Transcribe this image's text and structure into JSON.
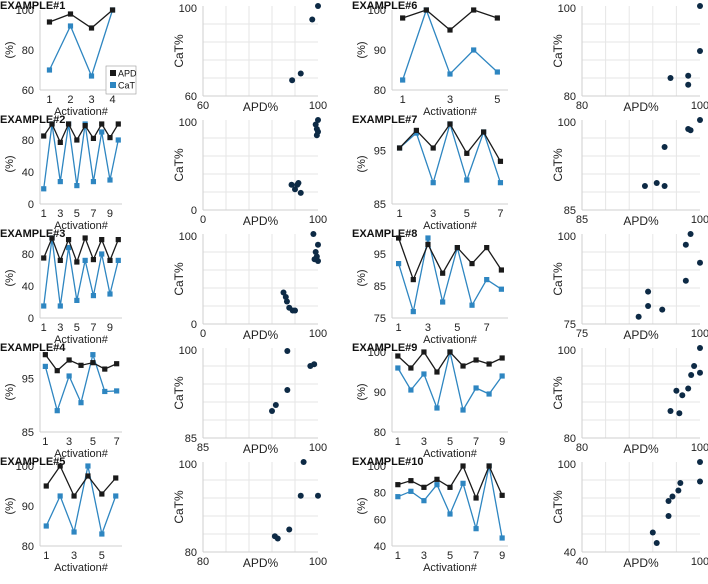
{
  "colors": {
    "apd": "#1a1a1a",
    "cat": "#2e86c1",
    "scatter_point": "#0d2a45",
    "grid": "#e6e6e6",
    "axis": "#cfcfcf"
  },
  "legend": {
    "placement": "top-right",
    "entries": [
      "APD",
      "CaT"
    ]
  },
  "chart_data": [
    {
      "type": "line",
      "title": "EXAMPLE#1",
      "ylabel": "(%)",
      "xlabel": "Activation#",
      "x_ticks": [
        "1",
        "2",
        "3",
        "4"
      ],
      "ylim": [
        60,
        100
      ],
      "y_ticks": [
        "60",
        "80",
        "100"
      ],
      "x": [
        1,
        2,
        3,
        4
      ],
      "series": [
        {
          "name": "APD",
          "values": [
            94,
            98,
            91,
            100
          ]
        },
        {
          "name": "CaT",
          "values": [
            70,
            92,
            67,
            100
          ]
        }
      ]
    },
    {
      "type": "scatter",
      "xlabel": "APD%",
      "ylabel": "CaT%",
      "xlim": [
        60,
        100
      ],
      "ylim": [
        60,
        100
      ],
      "x_tick_labels": [
        "60",
        "100"
      ],
      "y_tick_labels": [
        "60",
        "100"
      ],
      "points": [
        [
          91,
          67
        ],
        [
          94,
          70
        ],
        [
          98,
          94
        ],
        [
          100,
          100
        ]
      ]
    },
    {
      "type": "line",
      "title": "EXAMPLE#2",
      "ylabel": "(%)",
      "xlabel": "Activation#",
      "x_ticks": [
        "1",
        "3",
        "5",
        "7",
        "9"
      ],
      "ylim": [
        0,
        100
      ],
      "y_ticks": [
        "0",
        "40",
        "80"
      ],
      "x": [
        1,
        2,
        3,
        4,
        5,
        6,
        7,
        8,
        9,
        10
      ],
      "series": [
        {
          "name": "APD",
          "values": [
            85,
            100,
            77,
            100,
            80,
            98,
            82,
            100,
            83,
            100
          ]
        },
        {
          "name": "CaT",
          "values": [
            19,
            100,
            28,
            100,
            23,
            100,
            28,
            90,
            30,
            80
          ]
        }
      ]
    },
    {
      "type": "scatter",
      "xlabel": "APD%",
      "ylabel": "CaT%",
      "xlim": [
        0,
        100
      ],
      "ylim": [
        0,
        100
      ],
      "x_tick_labels": [
        "0",
        "100"
      ],
      "y_tick_labels": [
        "0",
        "100"
      ],
      "points": [
        [
          77,
          28
        ],
        [
          80,
          23
        ],
        [
          82,
          28
        ],
        [
          83,
          30
        ],
        [
          85,
          19
        ],
        [
          100,
          100
        ],
        [
          98,
          95
        ],
        [
          99,
          90
        ],
        [
          100,
          87
        ],
        [
          99,
          83
        ]
      ]
    },
    {
      "type": "line",
      "title": "EXAMPLE#3",
      "ylabel": "(%)",
      "xlabel": "Activation#",
      "x_ticks": [
        "1",
        "3",
        "5",
        "7",
        "9"
      ],
      "ylim": [
        0,
        100
      ],
      "y_ticks": [
        "0",
        "40",
        "80"
      ],
      "x": [
        1,
        2,
        3,
        4,
        5,
        6,
        7,
        8,
        9,
        10
      ],
      "series": [
        {
          "name": "APD",
          "values": [
            75,
            100,
            72,
            98,
            70,
            100,
            73,
            98,
            72,
            98
          ]
        },
        {
          "name": "CaT",
          "values": [
            15,
            100,
            15,
            88,
            22,
            72,
            28,
            80,
            30,
            72
          ]
        }
      ]
    },
    {
      "type": "scatter",
      "xlabel": "APD%",
      "ylabel": "CaT%",
      "xlim": [
        0,
        100
      ],
      "ylim": [
        0,
        100
      ],
      "x_tick_labels": [
        "0",
        "100"
      ],
      "y_tick_labels": [
        "0",
        "100"
      ],
      "points": [
        [
          70,
          35
        ],
        [
          72,
          30
        ],
        [
          73,
          25
        ],
        [
          75,
          18
        ],
        [
          78,
          15
        ],
        [
          80,
          15
        ],
        [
          96,
          100
        ],
        [
          100,
          88
        ],
        [
          98,
          80
        ],
        [
          99,
          75
        ],
        [
          97,
          72
        ],
        [
          100,
          70
        ]
      ]
    },
    {
      "type": "line",
      "title": "EXAMPLE#4",
      "ylabel": "(%)",
      "xlabel": "Activation#",
      "x_ticks": [
        "1",
        "3",
        "5",
        "7"
      ],
      "ylim": [
        85,
        100
      ],
      "y_ticks": [
        "85",
        "95"
      ],
      "x": [
        1,
        2,
        3,
        4,
        5,
        6,
        7
      ],
      "series": [
        {
          "name": "APD",
          "values": [
            99.5,
            96.5,
            98.5,
            97.5,
            98,
            96.8,
            97.8
          ]
        },
        {
          "name": "CaT",
          "values": [
            97.3,
            89,
            95.5,
            90.5,
            99.5,
            92.6,
            92.7
          ]
        }
      ]
    },
    {
      "type": "scatter",
      "xlabel": "APD%",
      "ylabel": "CaT%",
      "xlim": [
        85,
        100
      ],
      "ylim": [
        85,
        100
      ],
      "x_tick_labels": [
        "85",
        "100"
      ],
      "y_tick_labels": [
        "85",
        "100"
      ],
      "points": [
        [
          94,
          89.5
        ],
        [
          94.5,
          90.5
        ],
        [
          96,
          93
        ],
        [
          96,
          99.5
        ],
        [
          99,
          97
        ],
        [
          99.5,
          97.3
        ]
      ]
    },
    {
      "type": "line",
      "title": "EXAMPLE#5",
      "ylabel": "(%)",
      "xlabel": "Activation#",
      "x_ticks": [
        "1",
        "3",
        "5"
      ],
      "ylim": [
        80,
        100
      ],
      "y_ticks": [
        "80",
        "90",
        "100"
      ],
      "x": [
        1,
        2,
        3,
        4,
        5,
        6
      ],
      "series": [
        {
          "name": "APD",
          "values": [
            95,
            100,
            92.5,
            97.5,
            93,
            97
          ]
        },
        {
          "name": "CaT",
          "values": [
            85,
            92.5,
            83.5,
            100,
            83,
            92.5
          ]
        }
      ]
    },
    {
      "type": "scatter",
      "xlabel": "APD%",
      "ylabel": "CaT%",
      "xlim": [
        80,
        100
      ],
      "ylim": [
        80,
        100
      ],
      "x_tick_labels": [
        "80",
        "100"
      ],
      "y_tick_labels": [
        "80",
        "100"
      ],
      "points": [
        [
          92.5,
          83.5
        ],
        [
          93,
          83
        ],
        [
          95,
          85
        ],
        [
          97,
          92.5
        ],
        [
          97.5,
          100
        ],
        [
          100,
          92.5
        ]
      ]
    },
    {
      "type": "line",
      "title": "EXAMPLE#6",
      "ylabel": "(%)",
      "xlabel": "Activation#",
      "x_ticks": [
        "1",
        "3",
        "5"
      ],
      "ylim": [
        80,
        100
      ],
      "y_ticks": [
        "80",
        "90",
        "100"
      ],
      "x": [
        1,
        2,
        3,
        4,
        5
      ],
      "series": [
        {
          "name": "APD",
          "values": [
            98,
            100,
            95,
            100,
            98
          ]
        },
        {
          "name": "CaT",
          "values": [
            82.5,
            100,
            84,
            90,
            84.5
          ]
        }
      ]
    },
    {
      "type": "scatter",
      "xlabel": "APD%",
      "ylabel": "CaT%",
      "xlim": [
        80,
        100
      ],
      "ylim": [
        80,
        100
      ],
      "x_tick_labels": [
        "80",
        "100"
      ],
      "y_tick_labels": [
        "80",
        "100"
      ],
      "points": [
        [
          95,
          84
        ],
        [
          98,
          84.5
        ],
        [
          98,
          82.5
        ],
        [
          100,
          90
        ],
        [
          100,
          100
        ]
      ]
    },
    {
      "type": "line",
      "title": "EXAMPLE#7",
      "ylabel": "(%)",
      "xlabel": "Activation#",
      "x_ticks": [
        "1",
        "3",
        "5",
        "7"
      ],
      "ylim": [
        85,
        100
      ],
      "y_ticks": [
        "85",
        "95"
      ],
      "x": [
        1,
        2,
        3,
        4,
        5,
        6,
        7
      ],
      "series": [
        {
          "name": "APD",
          "values": [
            95.5,
            98.8,
            95.5,
            100,
            94.5,
            98.5,
            93
          ]
        },
        {
          "name": "CaT",
          "values": [
            95.5,
            98.3,
            89,
            100,
            89.5,
            98.5,
            89
          ]
        }
      ]
    },
    {
      "type": "scatter",
      "xlabel": "APD%",
      "ylabel": "CaT%",
      "xlim": [
        85,
        100
      ],
      "ylim": [
        85,
        100
      ],
      "x_tick_labels": [
        "85",
        "100"
      ],
      "y_tick_labels": [
        "85",
        "100"
      ],
      "points": [
        [
          93,
          89
        ],
        [
          94.5,
          89.5
        ],
        [
          95.5,
          89
        ],
        [
          95.5,
          95.5
        ],
        [
          98.5,
          98.5
        ],
        [
          98.8,
          98.3
        ],
        [
          100,
          100
        ]
      ]
    },
    {
      "type": "line",
      "title": "EXAMPLE#8",
      "ylabel": "(%)",
      "xlabel": "Activation#",
      "x_ticks": [
        "1",
        "3",
        "5",
        "7"
      ],
      "ylim": [
        75,
        100
      ],
      "y_ticks": [
        "75",
        "85",
        "95"
      ],
      "x": [
        1,
        2,
        3,
        4,
        5,
        6,
        7,
        8
      ],
      "series": [
        {
          "name": "APD",
          "values": [
            100,
            87,
            98,
            89,
            97,
            92,
            97,
            90
          ]
        },
        {
          "name": "CaT",
          "values": [
            92,
            77,
            100,
            80,
            97,
            79,
            87,
            84
          ]
        }
      ]
    },
    {
      "type": "scatter",
      "xlabel": "APD%",
      "ylabel": "CaT%",
      "xlim": [
        75,
        100
      ],
      "ylim": [
        75,
        100
      ],
      "x_tick_labels": [
        "75",
        "100"
      ],
      "y_tick_labels": [
        "75",
        "100"
      ],
      "points": [
        [
          87,
          77
        ],
        [
          89,
          80
        ],
        [
          89,
          84
        ],
        [
          92,
          79
        ],
        [
          97,
          87
        ],
        [
          97,
          97
        ],
        [
          98,
          100
        ],
        [
          100,
          92
        ]
      ]
    },
    {
      "type": "line",
      "title": "EXAMPLE#9",
      "ylabel": "(%)",
      "xlabel": "Activation#",
      "x_ticks": [
        "1",
        "3",
        "5",
        "7",
        "9"
      ],
      "ylim": [
        80,
        100
      ],
      "y_ticks": [
        "80",
        "90",
        "100"
      ],
      "x": [
        1,
        2,
        3,
        4,
        5,
        6,
        7,
        8,
        9
      ],
      "series": [
        {
          "name": "APD",
          "values": [
            99,
            96,
            100,
            95,
            100,
            96.5,
            98,
            97,
            98.5
          ]
        },
        {
          "name": "CaT",
          "values": [
            96,
            90.5,
            94.5,
            86,
            100,
            85.5,
            91,
            89.5,
            94
          ]
        }
      ]
    },
    {
      "type": "scatter",
      "xlabel": "APD%",
      "ylabel": "CaT%",
      "xlim": [
        80,
        100
      ],
      "ylim": [
        80,
        100
      ],
      "x_tick_labels": [
        "80",
        "100"
      ],
      "y_tick_labels": [
        "80",
        "100"
      ],
      "points": [
        [
          95,
          86
        ],
        [
          96,
          90.5
        ],
        [
          96.5,
          85.5
        ],
        [
          97,
          89.5
        ],
        [
          98,
          91
        ],
        [
          98.5,
          94
        ],
        [
          99,
          96
        ],
        [
          100,
          100
        ],
        [
          100,
          94.5
        ]
      ]
    },
    {
      "type": "line",
      "title": "EXAMPLE#10",
      "ylabel": "(%)",
      "xlabel": "Activation#",
      "x_ticks": [
        "1",
        "3",
        "5",
        "7",
        "9"
      ],
      "ylim": [
        40,
        100
      ],
      "y_ticks": [
        "40",
        "60",
        "80",
        "100"
      ],
      "x": [
        1,
        2,
        3,
        4,
        5,
        6,
        7,
        8,
        9
      ],
      "series": [
        {
          "name": "APD",
          "values": [
            86,
            89,
            84,
            90,
            84,
            100,
            76,
            100,
            78
          ]
        },
        {
          "name": "CaT",
          "values": [
            77,
            81,
            74,
            86,
            64,
            87,
            53,
            100,
            46
          ]
        }
      ]
    },
    {
      "type": "scatter",
      "xlabel": "APD%",
      "ylabel": "CaT%",
      "xlim": [
        40,
        100
      ],
      "ylim": [
        40,
        100
      ],
      "x_tick_labels": [
        "40",
        "100"
      ],
      "y_tick_labels": [
        "40",
        "100"
      ],
      "points": [
        [
          76,
          53
        ],
        [
          78,
          46
        ],
        [
          84,
          64
        ],
        [
          84,
          74
        ],
        [
          86,
          77
        ],
        [
          89,
          81
        ],
        [
          90,
          86
        ],
        [
          100,
          87
        ],
        [
          100,
          100
        ]
      ]
    }
  ]
}
